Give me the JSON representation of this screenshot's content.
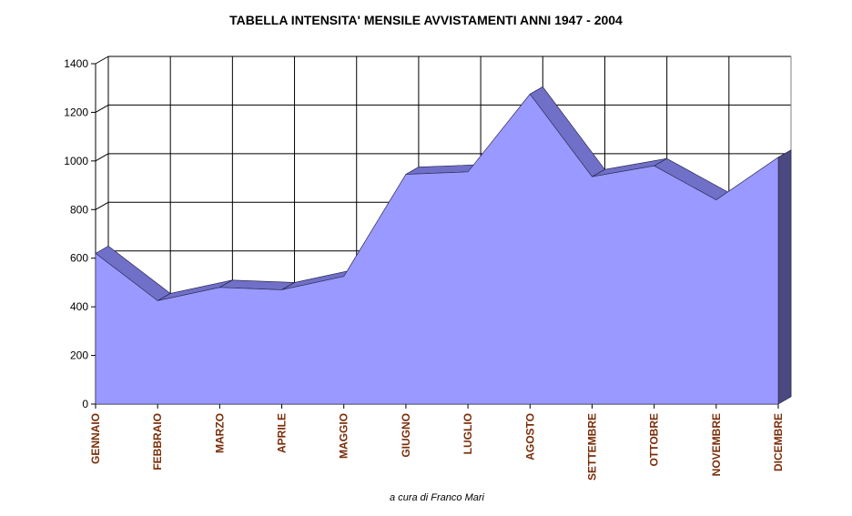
{
  "chart_data": {
    "type": "area",
    "title": "TABELLA  INTENSITA'  MENSILE  AVVISTAMENTI  ANNI 1947 - 2004",
    "categories": [
      "GENNAIO",
      "FEBBRAIO",
      "MARZO",
      "APRILE",
      "MAGGIO",
      "GIUGNO",
      "LUGLIO",
      "AGOSTO",
      "SETTEMBRE",
      "OTTOBRE",
      "NOVEMBRE",
      "DICEMBRE"
    ],
    "values": [
      620,
      425,
      480,
      470,
      525,
      945,
      955,
      1275,
      935,
      980,
      840,
      1015
    ],
    "ylim": [
      0,
      1400
    ],
    "yticks": [
      0,
      200,
      400,
      600,
      800,
      1000,
      1200,
      1400
    ],
    "grid": true,
    "three_d": true,
    "colors": {
      "area": "#9999ff",
      "top_edge": "#7070c8",
      "side": "#4a4a80",
      "grid": "#000000",
      "tick_label": "#7a2e0a"
    }
  },
  "footer": {
    "credit": "a cura di Franco Mari"
  }
}
